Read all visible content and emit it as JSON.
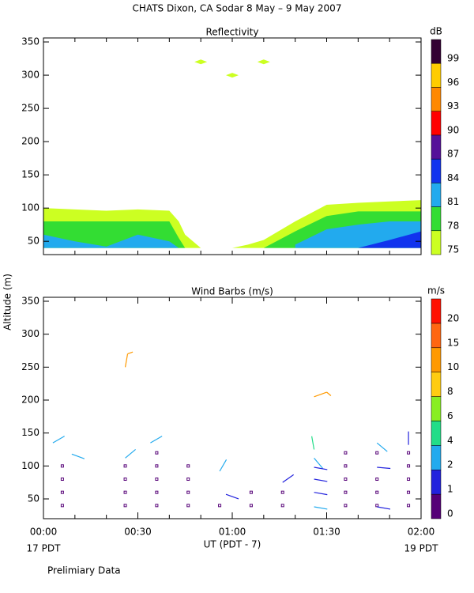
{
  "title": "CHATS Dixon, CA  Sodar   8 May –  9 May 2007",
  "y_axis_label": "Altitude (m)",
  "x_axis_label": "UT  (PDT - 7)",
  "start_label": "17 PDT",
  "end_label": "19 PDT",
  "footer": "Prelimiary Data",
  "chart_data": [
    {
      "type": "area",
      "title": "Reflectivity",
      "xlim": [
        0,
        120
      ],
      "xminor_ticks": [
        0,
        10,
        20,
        30,
        40,
        50,
        60,
        70,
        80,
        90,
        100,
        110,
        120
      ],
      "ylim": [
        30,
        356
      ],
      "yticks": [
        50,
        100,
        150,
        200,
        250,
        300,
        350
      ],
      "area_base": 40,
      "x": [
        0,
        10,
        20,
        30,
        40,
        43,
        45,
        50,
        55,
        60,
        65,
        70,
        80,
        90,
        100,
        110,
        120
      ],
      "series": [
        {
          "color": "#ccff22",
          "values": [
            100,
            98,
            96,
            98,
            96,
            80,
            60,
            40,
            null,
            40,
            45,
            52,
            80,
            105,
            108,
            110,
            112
          ]
        },
        {
          "color": "#33dd33",
          "values": [
            80,
            80,
            80,
            80,
            80,
            55,
            40,
            null,
            null,
            null,
            null,
            40,
            65,
            88,
            95,
            95,
            95
          ]
        },
        {
          "color": "#22aaee",
          "values": [
            60,
            50,
            42,
            60,
            50,
            40,
            null,
            null,
            null,
            null,
            null,
            null,
            45,
            68,
            75,
            80,
            80
          ]
        },
        {
          "color": "#1133ee",
          "values": [
            null,
            null,
            null,
            null,
            null,
            null,
            null,
            null,
            null,
            null,
            null,
            null,
            null,
            null,
            40,
            52,
            65
          ]
        }
      ],
      "patches": {
        "color": "#ccff22",
        "x": [
          50,
          70,
          60
        ],
        "y": [
          320,
          320,
          300
        ]
      },
      "colorbar": {
        "unit": "dB",
        "labels": [
          75,
          78,
          81,
          84,
          87,
          90,
          93,
          96,
          99
        ],
        "colors": [
          "#ccff22",
          "#33dd33",
          "#22aaee",
          "#1133ee",
          "#551199",
          "#ff0000",
          "#ff8800",
          "#ffcc00",
          "#330033"
        ]
      }
    },
    {
      "type": "barb",
      "title": "Wind Barbs (m/s)",
      "xlim": [
        0,
        120
      ],
      "xticks": [
        {
          "value": 0,
          "label": "00:00"
        },
        {
          "value": 30,
          "label": "00:30"
        },
        {
          "value": 60,
          "label": "01:00"
        },
        {
          "value": 90,
          "label": "01:30"
        },
        {
          "value": 120,
          "label": "02:00"
        }
      ],
      "xminor_ticks": [
        10,
        20,
        40,
        50,
        70,
        80,
        100,
        110
      ],
      "ylim": [
        20,
        356
      ],
      "yticks": [
        50,
        100,
        150,
        200,
        250,
        300,
        350
      ],
      "x": [
        3,
        9,
        26,
        34,
        56,
        58,
        76,
        26,
        86,
        86,
        86,
        86,
        86,
        86,
        86,
        106,
        106,
        106,
        116
      ],
      "y": [
        135,
        118,
        112,
        135,
        92,
        57,
        75,
        250,
        205,
        125,
        112,
        98,
        80,
        60,
        38,
        135,
        98,
        38,
        132
      ],
      "speed": [
        3,
        3,
        3,
        3,
        3,
        1.5,
        1.5,
        12,
        12,
        4,
        3,
        1.5,
        1.5,
        1.5,
        3,
        3,
        1.5,
        1.5,
        1.5
      ],
      "direction": [
        60,
        110,
        50,
        60,
        30,
        110,
        55,
        10,
        70,
        350,
        140,
        100,
        100,
        100,
        100,
        130,
        95,
        100,
        0
      ],
      "calm": {
        "x": [
          6,
          6,
          6,
          6,
          26,
          26,
          26,
          26,
          36,
          36,
          36,
          36,
          36,
          46,
          46,
          46,
          46,
          56,
          66,
          66,
          76,
          76,
          96,
          96,
          96,
          96,
          96,
          106,
          106,
          106,
          106,
          116,
          116,
          116,
          116,
          116
        ],
        "y": [
          40,
          60,
          80,
          100,
          40,
          60,
          80,
          100,
          40,
          60,
          80,
          100,
          120,
          40,
          60,
          80,
          100,
          40,
          40,
          60,
          40,
          60,
          40,
          60,
          80,
          100,
          120,
          60,
          80,
          120,
          40,
          40,
          60,
          80,
          100,
          120
        ]
      },
      "colorbar": {
        "unit": "m/s",
        "labels": [
          0,
          1,
          2,
          4,
          6,
          8,
          10,
          15,
          20
        ],
        "colors": [
          "#550077",
          "#2222dd",
          "#22aaee",
          "#22dd88",
          "#88ee22",
          "#ffcc11",
          "#ff9900",
          "#ff6611",
          "#ff1100"
        ]
      }
    }
  ]
}
